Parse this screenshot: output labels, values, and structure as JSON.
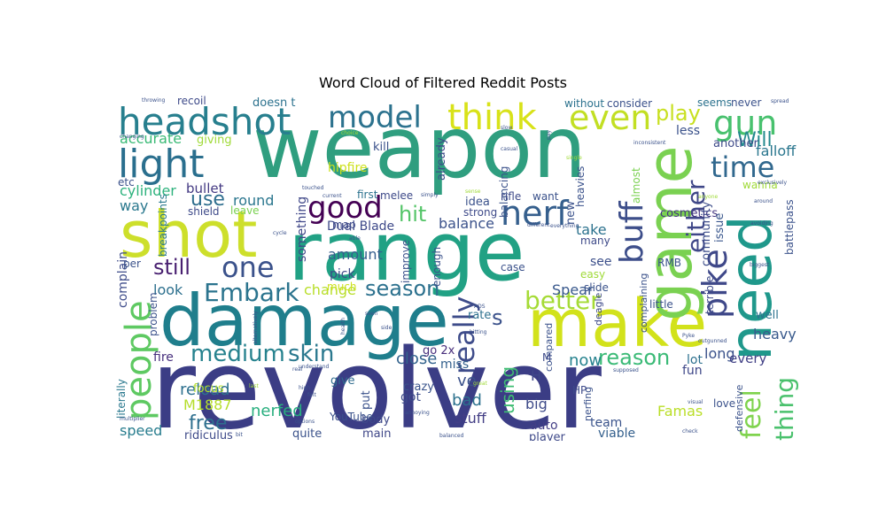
{
  "chart_data": {
    "type": "wordcloud",
    "title": "Word Cloud of Filtered Reddit Posts",
    "colormap": "viridis",
    "background": "#ffffff",
    "words": [
      {
        "text": "revolver",
        "weight": 1.0,
        "color": "#3b3d85"
      },
      {
        "text": "weapon",
        "weight": 0.92,
        "color": "#2f9e7f"
      },
      {
        "text": "range",
        "weight": 0.88,
        "color": "#21a184"
      },
      {
        "text": "damage",
        "weight": 0.8,
        "color": "#1f7e8c"
      },
      {
        "text": "shot",
        "weight": 0.76,
        "color": "#cddf2b"
      },
      {
        "text": "make",
        "weight": 0.72,
        "color": "#d2e21b"
      },
      {
        "text": "game",
        "weight": 0.66,
        "color": "#7ad151"
      },
      {
        "text": "need",
        "weight": 0.64,
        "color": "#1f988b"
      },
      {
        "text": "headshot",
        "weight": 0.45,
        "color": "#277f8e"
      },
      {
        "text": "people",
        "weight": 0.42,
        "color": "#5ec962"
      },
      {
        "text": "light",
        "weight": 0.38,
        "color": "#2a6f8e"
      },
      {
        "text": "think",
        "weight": 0.36,
        "color": "#d8e219"
      },
      {
        "text": "even",
        "weight": 0.36,
        "color": "#c2df23"
      },
      {
        "text": "gun",
        "weight": 0.36,
        "color": "#48c16e"
      },
      {
        "text": "model",
        "weight": 0.33,
        "color": "#2c728e"
      },
      {
        "text": "nerf",
        "weight": 0.33,
        "color": "#355f8d"
      },
      {
        "text": "pike",
        "weight": 0.33,
        "color": "#3f4889"
      },
      {
        "text": "buff",
        "weight": 0.33,
        "color": "#3d4e8a"
      },
      {
        "text": "good",
        "weight": 0.3,
        "color": "#440154"
      },
      {
        "text": "time",
        "weight": 0.3,
        "color": "#31688e"
      },
      {
        "text": "one",
        "weight": 0.28,
        "color": "#3b528b"
      },
      {
        "text": "really",
        "weight": 0.28,
        "color": "#3e4c8a"
      },
      {
        "text": "better",
        "weight": 0.27,
        "color": "#a5db36"
      },
      {
        "text": "feel",
        "weight": 0.27,
        "color": "#7fd34e"
      },
      {
        "text": "thing",
        "weight": 0.27,
        "color": "#4ac16d"
      },
      {
        "text": "either",
        "weight": 0.27,
        "color": "#3f4788"
      },
      {
        "text": "Embark",
        "weight": 0.26,
        "color": "#2b748e"
      },
      {
        "text": "medium",
        "weight": 0.25,
        "color": "#26828e"
      },
      {
        "text": "skin",
        "weight": 0.25,
        "color": "#2a788e"
      },
      {
        "text": "play",
        "weight": 0.24,
        "color": "#c8e020"
      },
      {
        "text": "season",
        "weight": 0.24,
        "color": "#2c718e"
      },
      {
        "text": "reason",
        "weight": 0.24,
        "color": "#3aba76"
      },
      {
        "text": "hit",
        "weight": 0.24,
        "color": "#54c568"
      },
      {
        "text": "s",
        "weight": 0.24,
        "color": "#3b528b"
      },
      {
        "text": "still",
        "weight": 0.22,
        "color": "#481f70"
      },
      {
        "text": "Will",
        "weight": 0.21,
        "color": "#23898e"
      },
      {
        "text": "use",
        "weight": 0.21,
        "color": "#2e6e8e"
      },
      {
        "text": "free",
        "weight": 0.21,
        "color": "#2e6f8e"
      },
      {
        "text": "using",
        "weight": 0.2,
        "color": "#3fbc73"
      },
      {
        "text": "accurate",
        "weight": 0.18,
        "color": "#3aba76"
      },
      {
        "text": "nerfed",
        "weight": 0.18,
        "color": "#29af7f"
      },
      {
        "text": "reload",
        "weight": 0.17,
        "color": "#2d708e"
      },
      {
        "text": "M1887",
        "weight": 0.16,
        "color": "#b5de2b"
      },
      {
        "text": "Famas",
        "weight": 0.16,
        "color": "#bade28"
      },
      {
        "text": "change",
        "weight": 0.16,
        "color": "#b8de29"
      },
      {
        "text": "close",
        "weight": 0.16,
        "color": "#33638d"
      },
      {
        "text": "falloff",
        "weight": 0.15,
        "color": "#2a768e"
      },
      {
        "text": "cylinder",
        "weight": 0.15,
        "color": "#2db27d"
      },
      {
        "text": "look",
        "weight": 0.15,
        "color": "#2d708e"
      },
      {
        "text": "round",
        "weight": 0.15,
        "color": "#2a768e"
      },
      {
        "text": "bullet",
        "weight": 0.15,
        "color": "#443a83"
      },
      {
        "text": "balance",
        "weight": 0.15,
        "color": "#3b528b"
      },
      {
        "text": "speed",
        "weight": 0.15,
        "color": "#287d8e"
      },
      {
        "text": "amount",
        "weight": 0.15,
        "color": "#355e8d"
      },
      {
        "text": "now",
        "weight": 0.15,
        "color": "#26828e"
      },
      {
        "text": "long",
        "weight": 0.15,
        "color": "#3b528b"
      },
      {
        "text": "heavy",
        "weight": 0.15,
        "color": "#38598c"
      },
      {
        "text": "bad",
        "weight": 0.15,
        "color": "#2c728e"
      },
      {
        "text": "big",
        "weight": 0.15,
        "color": "#3e4a89"
      },
      {
        "text": "stuff",
        "weight": 0.14,
        "color": "#433e85"
      },
      {
        "text": "Spear",
        "weight": 0.14,
        "color": "#38588c"
      },
      {
        "text": "see",
        "weight": 0.14,
        "color": "#3c4f8a"
      },
      {
        "text": "take",
        "weight": 0.14,
        "color": "#2c728e"
      },
      {
        "text": "way",
        "weight": 0.14,
        "color": "#2a788e"
      },
      {
        "text": "H",
        "weight": 0.14,
        "color": "#3f4788"
      },
      {
        "text": "fire",
        "weight": 0.14,
        "color": "#472f7d"
      },
      {
        "text": "ve",
        "weight": 0.14,
        "color": "#3b528b"
      },
      {
        "text": "team",
        "weight": 0.13,
        "color": "#3a538b"
      },
      {
        "text": "viable",
        "weight": 0.13,
        "color": "#34608d"
      },
      {
        "text": "auto",
        "weight": 0.13,
        "color": "#433e85"
      },
      {
        "text": "lot",
        "weight": 0.13,
        "color": "#2d708e"
      },
      {
        "text": "fun",
        "weight": 0.13,
        "color": "#3f4889"
      },
      {
        "text": "every",
        "weight": 0.13,
        "color": "#424186"
      },
      {
        "text": "well",
        "weight": 0.12,
        "color": "#2c728e"
      },
      {
        "text": "Dual Blade",
        "weight": 0.12,
        "color": "#3e4989"
      },
      {
        "text": "cosmetics",
        "weight": 0.12,
        "color": "#453781"
      },
      {
        "text": "hipfire",
        "weight": 0.12,
        "color": "#cde11d"
      },
      {
        "text": "something",
        "weight": 0.12,
        "color": "#3f4788"
      },
      {
        "text": "complain",
        "weight": 0.12,
        "color": "#3e4c8a"
      },
      {
        "text": "community",
        "weight": 0.12,
        "color": "#3d4d8a"
      },
      {
        "text": "issue",
        "weight": 0.12,
        "color": "#39568c"
      },
      {
        "text": "miss",
        "weight": 0.12,
        "color": "#34618d"
      },
      {
        "text": "pick",
        "weight": 0.12,
        "color": "#3e4989"
      },
      {
        "text": "rate",
        "weight": 0.12,
        "color": "#2d708e"
      },
      {
        "text": "got",
        "weight": 0.12,
        "color": "#3e4c8a"
      },
      {
        "text": "go 2x",
        "weight": 0.1,
        "color": "#472d7b"
      },
      {
        "text": "put",
        "weight": 0.1,
        "color": "#3b528b"
      },
      {
        "text": "crazy",
        "weight": 0.1,
        "color": "#3a548c"
      },
      {
        "text": "body",
        "weight": 0.1,
        "color": "#3e4989"
      },
      {
        "text": "main",
        "weight": 0.1,
        "color": "#3f4788"
      },
      {
        "text": "player",
        "weight": 0.1,
        "color": "#3e4989"
      },
      {
        "text": "give",
        "weight": 0.1,
        "color": "#2f6c8e"
      },
      {
        "text": "quite",
        "weight": 0.1,
        "color": "#3b528b"
      },
      {
        "text": "focus",
        "weight": 0.1,
        "color": "#b5de2b"
      },
      {
        "text": "ridiculus",
        "weight": 0.1,
        "color": "#3e4a89"
      },
      {
        "text": "literally",
        "weight": 0.1,
        "color": "#2a788e"
      },
      {
        "text": "problem",
        "weight": 0.09,
        "color": "#3b528b"
      },
      {
        "text": "breakpoints",
        "weight": 0.1,
        "color": "#2a788e"
      },
      {
        "text": "shield",
        "weight": 0.1,
        "color": "#3e4a89"
      },
      {
        "text": "leave",
        "weight": 0.09,
        "color": "#7ad151"
      },
      {
        "text": "etc",
        "weight": 0.09,
        "color": "#3b528b"
      },
      {
        "text": "giving",
        "weight": 0.1,
        "color": "#a0da39"
      },
      {
        "text": "recoil",
        "weight": 0.1,
        "color": "#3e4a89"
      },
      {
        "text": "doesn t",
        "weight": 0.1,
        "color": "#2c728e"
      },
      {
        "text": "kill",
        "weight": 0.1,
        "color": "#3b528b"
      },
      {
        "text": "already",
        "weight": 0.1,
        "color": "#3e4a89"
      },
      {
        "text": "balancing",
        "weight": 0.09,
        "color": "#3b528b"
      },
      {
        "text": "idea",
        "weight": 0.1,
        "color": "#3b528b"
      },
      {
        "text": "strong",
        "weight": 0.1,
        "color": "#3e4a89"
      },
      {
        "text": "improve",
        "weight": 0.1,
        "color": "#3b528b"
      },
      {
        "text": "enough",
        "weight": 0.1,
        "color": "#3b528b"
      },
      {
        "text": "first",
        "weight": 0.1,
        "color": "#2c728e"
      },
      {
        "text": "melee",
        "weight": 0.1,
        "color": "#3e4a89"
      },
      {
        "text": "map",
        "weight": 0.1,
        "color": "#3e4a89"
      },
      {
        "text": "much",
        "weight": 0.09,
        "color": "#cde11d"
      },
      {
        "text": "YouTube",
        "weight": 0.09,
        "color": "#3b528b"
      },
      {
        "text": "without",
        "weight": 0.1,
        "color": "#2c728e"
      },
      {
        "text": "consider",
        "weight": 0.1,
        "color": "#3b528b"
      },
      {
        "text": "seems",
        "weight": 0.1,
        "color": "#2c728e"
      },
      {
        "text": "never",
        "weight": 0.1,
        "color": "#3b528b"
      },
      {
        "text": "less",
        "weight": 0.11,
        "color": "#3b528b"
      },
      {
        "text": "another",
        "weight": 0.11,
        "color": "#3e4a89"
      },
      {
        "text": "heavies",
        "weight": 0.1,
        "color": "#3b528b"
      },
      {
        "text": "want",
        "weight": 0.1,
        "color": "#3b528b"
      },
      {
        "text": "rifle",
        "weight": 0.1,
        "color": "#3e4a89"
      },
      {
        "text": "new",
        "weight": 0.1,
        "color": "#3b528b"
      },
      {
        "text": "almost",
        "weight": 0.1,
        "color": "#7ad151"
      },
      {
        "text": "many",
        "weight": 0.1,
        "color": "#3e4a89"
      },
      {
        "text": "RMB",
        "weight": 0.09,
        "color": "#3b528b"
      },
      {
        "text": "slide",
        "weight": 0.09,
        "color": "#3b528b"
      },
      {
        "text": "case",
        "weight": 0.09,
        "color": "#3b528b"
      },
      {
        "text": "easy",
        "weight": 0.09,
        "color": "#a0da39"
      },
      {
        "text": "complaining",
        "weight": 0.08,
        "color": "#3b528b"
      },
      {
        "text": "compared",
        "weight": 0.08,
        "color": "#3b528b"
      },
      {
        "text": "deagle",
        "weight": 0.09,
        "color": "#3e4a89"
      },
      {
        "text": "little",
        "weight": 0.09,
        "color": "#3b528b"
      },
      {
        "text": "terrible",
        "weight": 0.09,
        "color": "#3e4a89"
      },
      {
        "text": "nerfing",
        "weight": 0.09,
        "color": "#3b528b"
      },
      {
        "text": "HP",
        "weight": 0.09,
        "color": "#3e4a89"
      },
      {
        "text": "love",
        "weight": 0.09,
        "color": "#3b528b"
      },
      {
        "text": "defensive",
        "weight": 0.08,
        "color": "#3b528b"
      },
      {
        "text": "M",
        "weight": 0.1,
        "color": "#3e4a89"
      },
      {
        "text": "wanna",
        "weight": 0.09,
        "color": "#a0da39"
      },
      {
        "text": "battlepass",
        "weight": 0.08,
        "color": "#3b528b"
      },
      {
        "text": "per",
        "weight": 0.09,
        "color": "#3b528b"
      },
      {
        "text": "throwing",
        "weight": 0.05,
        "color": "#3b528b"
      },
      {
        "text": "spread",
        "weight": 0.05,
        "color": "#3b528b"
      },
      {
        "text": "changing",
        "weight": 0.05,
        "color": "#3b528b"
      },
      {
        "text": "choice",
        "weight": 0.05,
        "color": "#a0da39"
      },
      {
        "text": "slow",
        "weight": 0.05,
        "color": "#3b528b"
      },
      {
        "text": "pay",
        "weight": 0.05,
        "color": "#3b528b"
      },
      {
        "text": "inconsistent",
        "weight": 0.05,
        "color": "#3b528b"
      },
      {
        "text": "casual",
        "weight": 0.05,
        "color": "#3b528b"
      },
      {
        "text": "single",
        "weight": 0.05,
        "color": "#a0da39"
      },
      {
        "text": "exclusively",
        "weight": 0.05,
        "color": "#3b528b"
      },
      {
        "text": "anyone",
        "weight": 0.05,
        "color": "#a0da39"
      },
      {
        "text": "around",
        "weight": 0.05,
        "color": "#3b528b"
      },
      {
        "text": "touched",
        "weight": 0.05,
        "color": "#3b528b"
      },
      {
        "text": "current",
        "weight": 0.05,
        "color": "#3b528b"
      },
      {
        "text": "simply",
        "weight": 0.05,
        "color": "#3b528b"
      },
      {
        "text": "sense",
        "weight": 0.05,
        "color": "#a0da39"
      },
      {
        "text": "different",
        "weight": 0.05,
        "color": "#3b528b"
      },
      {
        "text": "everything",
        "weight": 0.05,
        "color": "#3b528b"
      },
      {
        "text": "cycle",
        "weight": 0.05,
        "color": "#3b528b"
      },
      {
        "text": "able",
        "weight": 0.05,
        "color": "#3b528b"
      },
      {
        "text": "avoiding",
        "weight": 0.05,
        "color": "#3b528b"
      },
      {
        "text": "biggest",
        "weight": 0.05,
        "color": "#3b528b"
      },
      {
        "text": "alternatively",
        "weight": 0.05,
        "color": "#3b528b"
      },
      {
        "text": "health",
        "weight": 0.05,
        "color": "#3b528b"
      },
      {
        "text": "seen",
        "weight": 0.05,
        "color": "#3b528b"
      },
      {
        "text": "side",
        "weight": 0.05,
        "color": "#3b528b"
      },
      {
        "text": "hitting",
        "weight": 0.05,
        "color": "#3b528b"
      },
      {
        "text": "ADS",
        "weight": 0.05,
        "color": "#3b528b"
      },
      {
        "text": "supposed",
        "weight": 0.05,
        "color": "#3b528b"
      },
      {
        "text": "outgunned",
        "weight": 0.05,
        "color": "#3b528b"
      },
      {
        "text": "Pyke",
        "weight": 0.05,
        "color": "#3b528b"
      },
      {
        "text": "real",
        "weight": 0.05,
        "color": "#3b528b"
      },
      {
        "text": "understand",
        "weight": 0.05,
        "color": "#3b528b"
      },
      {
        "text": "high",
        "weight": 0.05,
        "color": "#3b528b"
      },
      {
        "text": "last",
        "weight": 0.05,
        "color": "#a0da39"
      },
      {
        "text": "felt",
        "weight": 0.05,
        "color": "#3b528b"
      },
      {
        "text": "great",
        "weight": 0.05,
        "color": "#a0da39"
      },
      {
        "text": "options",
        "weight": 0.05,
        "color": "#3b528b"
      },
      {
        "text": "annoying",
        "weight": 0.05,
        "color": "#3b528b"
      },
      {
        "text": "visual",
        "weight": 0.05,
        "color": "#3b528b"
      },
      {
        "text": "multiplier",
        "weight": 0.05,
        "color": "#3b528b"
      },
      {
        "text": "bit",
        "weight": 0.05,
        "color": "#3b528b"
      },
      {
        "text": "balanced",
        "weight": 0.05,
        "color": "#3b528b"
      },
      {
        "text": "check",
        "weight": 0.05,
        "color": "#3b528b"
      }
    ]
  }
}
